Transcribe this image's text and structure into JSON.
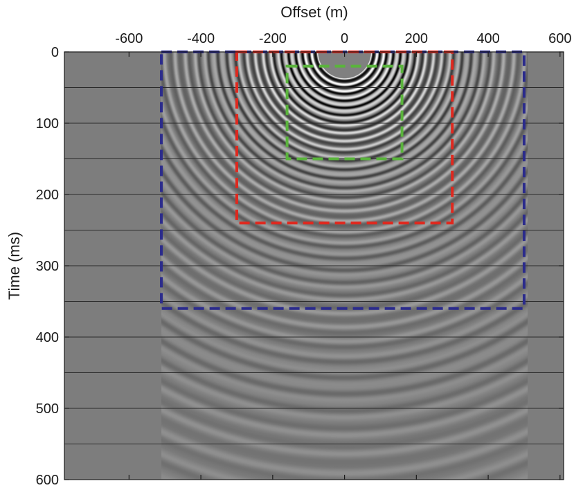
{
  "chart_data": {
    "type": "heatmap",
    "title": "",
    "xlabel": "Offset (m)",
    "ylabel": "Time (ms)",
    "xlim": [
      -780,
      610
    ],
    "ylim": [
      0,
      600
    ],
    "y_inverted": true,
    "x_axis_position": "top",
    "x_ticks": [
      -600,
      -400,
      -200,
      0,
      200,
      400,
      600
    ],
    "y_ticks": [
      0,
      100,
      200,
      300,
      400,
      500,
      600
    ],
    "x_tick_labels": [
      "-600",
      "-400",
      "-200",
      "0",
      "200",
      "400",
      "600"
    ],
    "y_tick_labels": [
      "0",
      "100",
      "200",
      "300",
      "400",
      "500",
      "600"
    ],
    "colormap": "gray",
    "background_color": "#7d7d7d",
    "data_extent": {
      "x": [
        -510,
        510
      ],
      "y": [
        20,
        600
      ]
    },
    "source_offset": 0,
    "horizontal_lines_ms": [
      50,
      100,
      150,
      200,
      250,
      300,
      350,
      400,
      450,
      500,
      550
    ],
    "boxes": [
      {
        "name": "blue",
        "color": "#2b2b8c",
        "x": [
          -510,
          500
        ],
        "y": [
          0,
          360
        ]
      },
      {
        "name": "red",
        "color": "#e0281e",
        "x": [
          -300,
          300
        ],
        "y": [
          0,
          240
        ]
      },
      {
        "name": "green",
        "color": "#5ab43c",
        "x": [
          -160,
          160
        ],
        "y": [
          20,
          150
        ]
      }
    ]
  }
}
